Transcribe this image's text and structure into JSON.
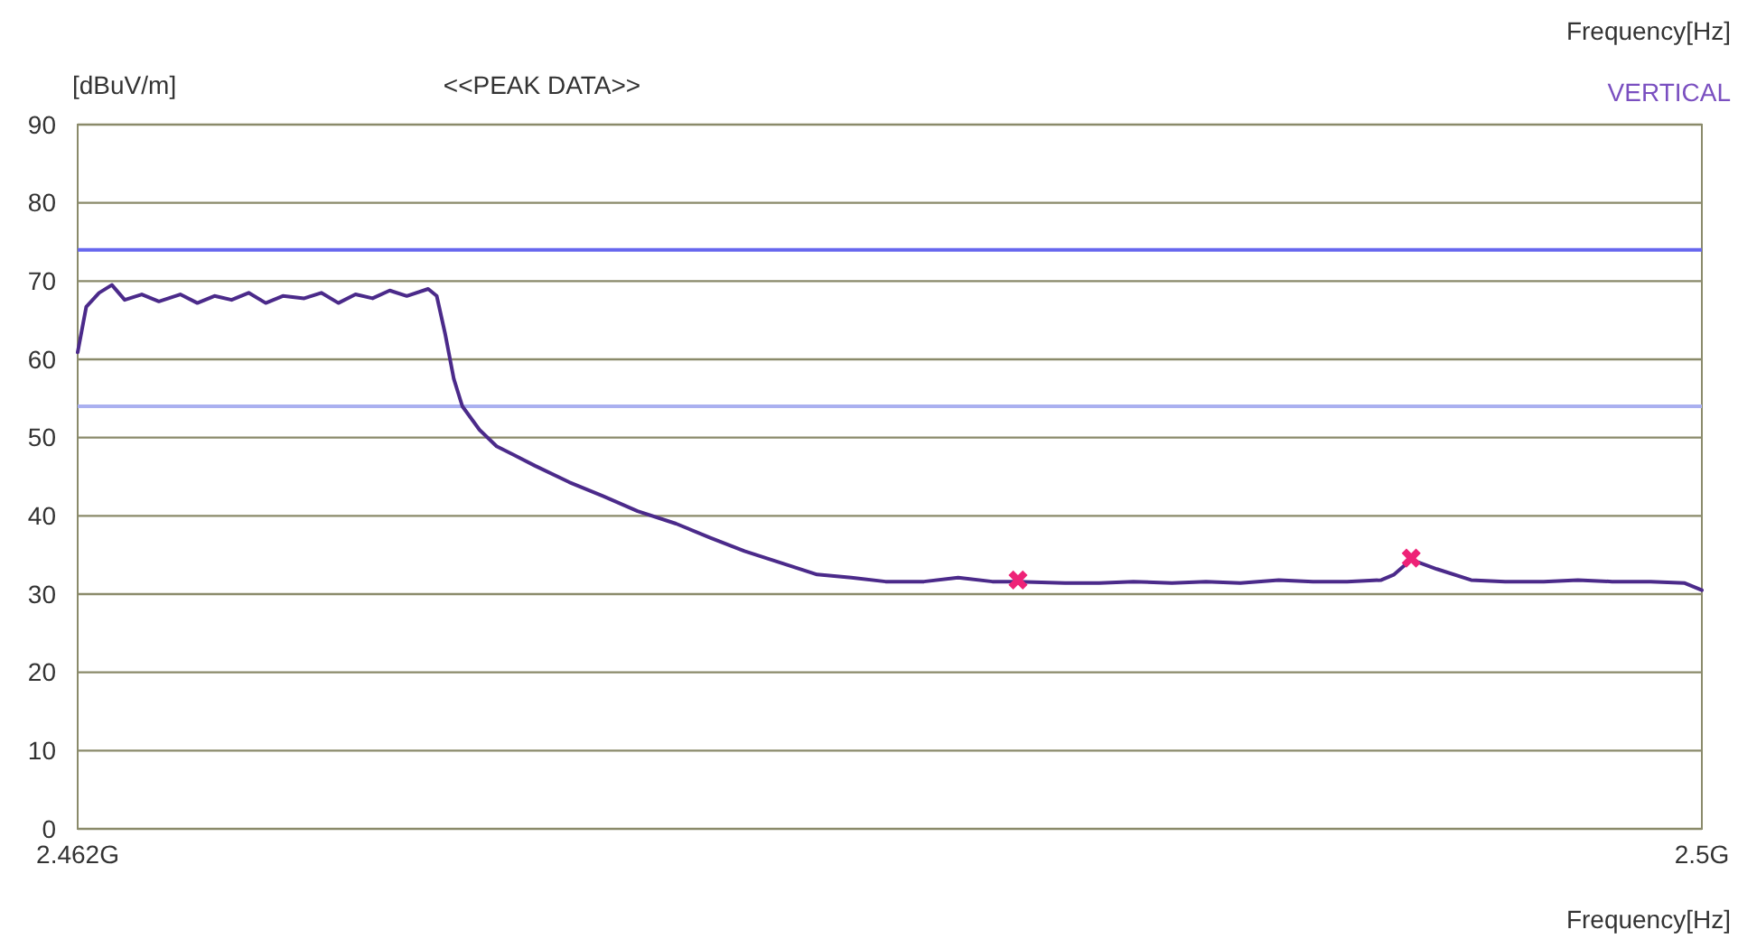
{
  "chart_data": {
    "type": "line",
    "title": "<<PEAK DATA>>",
    "xlabel": "Frequency[Hz]",
    "ylabel": "[dBuV/m]",
    "annotations": [
      "Frequency[Hz]",
      "VERTICAL"
    ],
    "xlim": [
      2.462,
      2.5
    ],
    "xticks": [
      {
        "value": 2.462,
        "label": "2.462G"
      },
      {
        "value": 2.5,
        "label": "2.5G"
      }
    ],
    "ylim": [
      0,
      90
    ],
    "yticks": [
      0,
      10,
      20,
      30,
      40,
      50,
      60,
      70,
      80,
      90
    ],
    "grid": "y",
    "ref_lines": [
      {
        "axis": "y",
        "value": 74,
        "color": "#6666ee"
      },
      {
        "axis": "y",
        "value": 54,
        "color": "#aab0f0"
      }
    ],
    "series": [
      {
        "type": "line",
        "color": "#4b2a8a",
        "marker": "none",
        "line_style": "solid",
        "x": [
          2.462,
          2.4622,
          2.4625,
          2.4628,
          2.4631,
          2.4635,
          2.4639,
          2.4644,
          2.4648,
          2.4652,
          2.4656,
          2.466,
          2.4664,
          2.4668,
          2.4673,
          2.4677,
          2.4681,
          2.4685,
          2.4689,
          2.4693,
          2.4697,
          2.4702,
          2.4704,
          2.4706,
          2.4708,
          2.471,
          2.4714,
          2.4718,
          2.4722,
          2.4727,
          2.4735,
          2.4743,
          2.4751,
          2.476,
          2.4768,
          2.4776,
          2.4785,
          2.4793,
          2.4801,
          2.4809,
          2.4818,
          2.4826,
          2.4834,
          2.484,
          2.4851,
          2.4859,
          2.4867,
          2.4876,
          2.4884,
          2.4892,
          2.4901,
          2.4909,
          2.4917,
          2.4925,
          2.4928,
          2.4932,
          2.4938,
          2.4946,
          2.4954,
          2.4963,
          2.4971,
          2.4979,
          2.4988,
          2.4996,
          2.5
        ],
        "values": [
          60.9,
          66.7,
          68.5,
          69.5,
          67.6,
          68.3,
          67.4,
          68.3,
          67.2,
          68.1,
          67.6,
          68.5,
          67.2,
          68.1,
          67.8,
          68.5,
          67.2,
          68.3,
          67.8,
          68.8,
          68.1,
          69.0,
          68.1,
          63.2,
          57.5,
          54.0,
          51.0,
          48.9,
          47.8,
          46.4,
          44.3,
          42.5,
          40.6,
          39.0,
          37.2,
          35.5,
          33.9,
          32.5,
          32.1,
          31.6,
          31.6,
          32.1,
          31.6,
          31.6,
          31.4,
          31.4,
          31.6,
          31.4,
          31.6,
          31.4,
          31.8,
          31.6,
          31.6,
          31.8,
          32.5,
          34.4,
          33.2,
          31.8,
          31.6,
          31.6,
          31.8,
          31.6,
          31.6,
          31.4,
          30.5
        ]
      },
      {
        "type": "scatter",
        "color": "#ee2277",
        "marker": "cross",
        "x": [
          2.484,
          2.4932
        ],
        "values": [
          31.8,
          34.6
        ]
      }
    ]
  }
}
